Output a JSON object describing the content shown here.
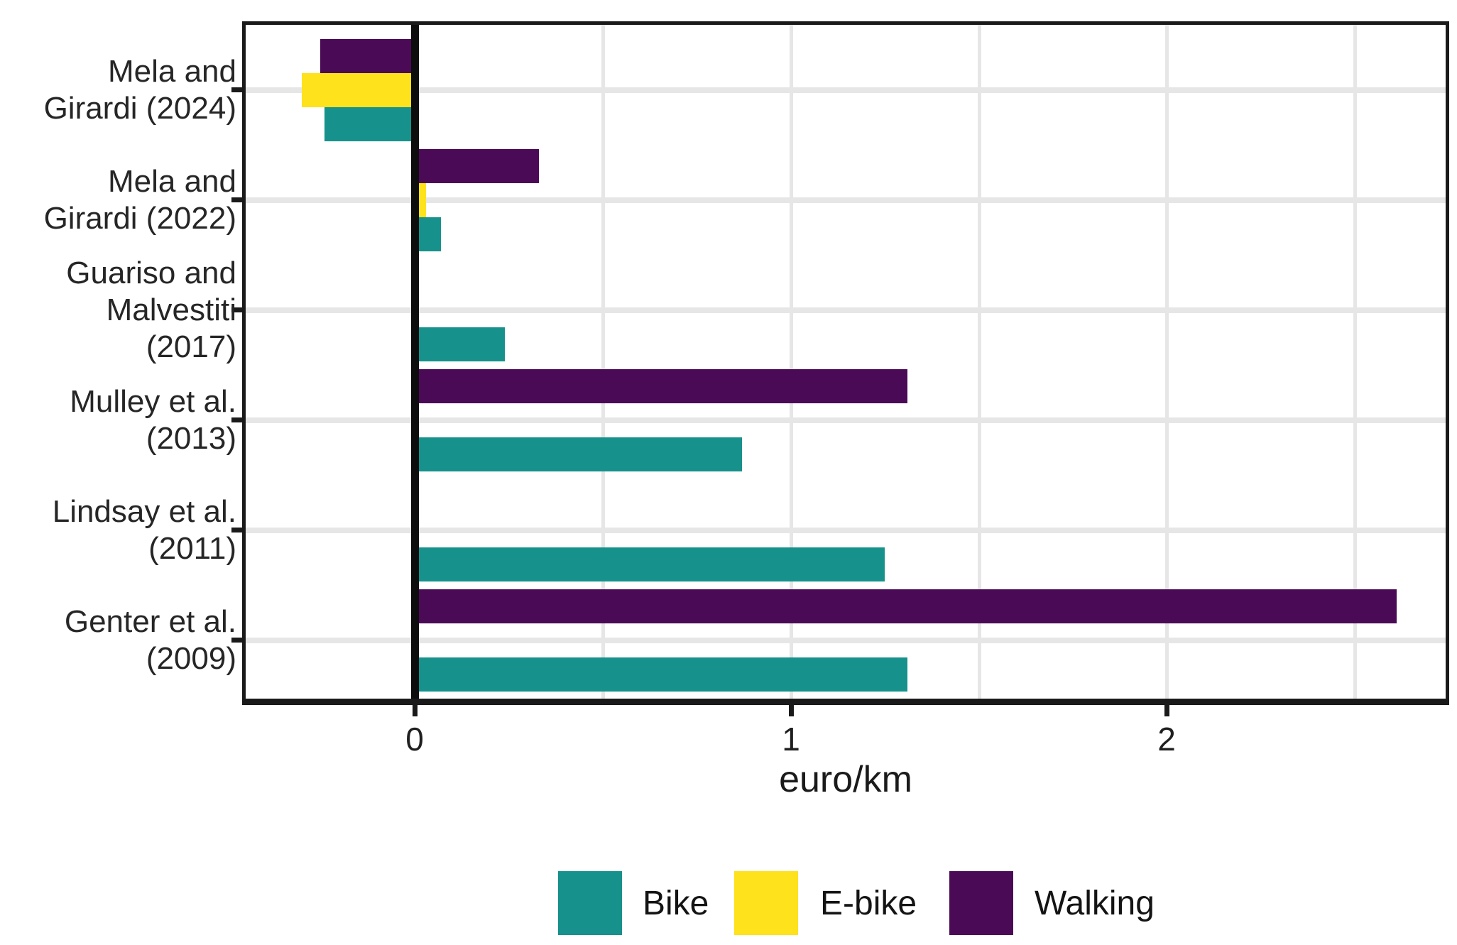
{
  "chart_data": {
    "type": "bar",
    "orientation": "horizontal",
    "title": "",
    "xlabel": "euro/km",
    "categories": [
      "Mela and Girardi (2024)",
      "Mela and Girardi (2022)",
      "Guariso and Malvestiti (2017)",
      "Mulley et al. (2013)",
      "Lindsay et al. (2011)",
      "Genter et al. (2009)"
    ],
    "category_label_lines": [
      [
        "Mela and",
        "Girardi (2024)"
      ],
      [
        "Mela and",
        "Girardi (2022)"
      ],
      [
        "Guariso and",
        "Malvestiti",
        "(2017)"
      ],
      [
        "Mulley et al.",
        "(2013)"
      ],
      [
        "Lindsay et al.",
        "(2011)"
      ],
      [
        "Genter et al.",
        "(2009)"
      ]
    ],
    "series": [
      {
        "name": "Bike",
        "color": "#16918B",
        "values": [
          -0.24,
          0.07,
          0.24,
          0.87,
          1.25,
          1.31
        ]
      },
      {
        "name": "E-bike",
        "color": "#FDE21C",
        "values": [
          -0.3,
          0.03,
          null,
          null,
          null,
          null
        ]
      },
      {
        "name": "Walking",
        "color": "#4A0A55",
        "values": [
          -0.25,
          0.33,
          null,
          1.31,
          null,
          2.61
        ]
      }
    ],
    "bar_order_top_to_bottom": [
      "Walking",
      "E-bike",
      "Bike"
    ],
    "x_ticks": [
      "0",
      "1",
      "2"
    ],
    "x_tick_values": [
      0,
      1,
      2
    ],
    "xlim": [
      -0.449,
      2.741
    ],
    "vertical_gridlines": [
      0.5,
      1,
      1.5,
      2,
      2.5
    ],
    "zero_line": 0,
    "grid": true,
    "legend_position": "bottom"
  },
  "styles": {
    "gridline_color": "#E6E6E6",
    "axis_color": "#1A1A1A",
    "text_color": "#262626",
    "background": "#FFFFFF"
  }
}
